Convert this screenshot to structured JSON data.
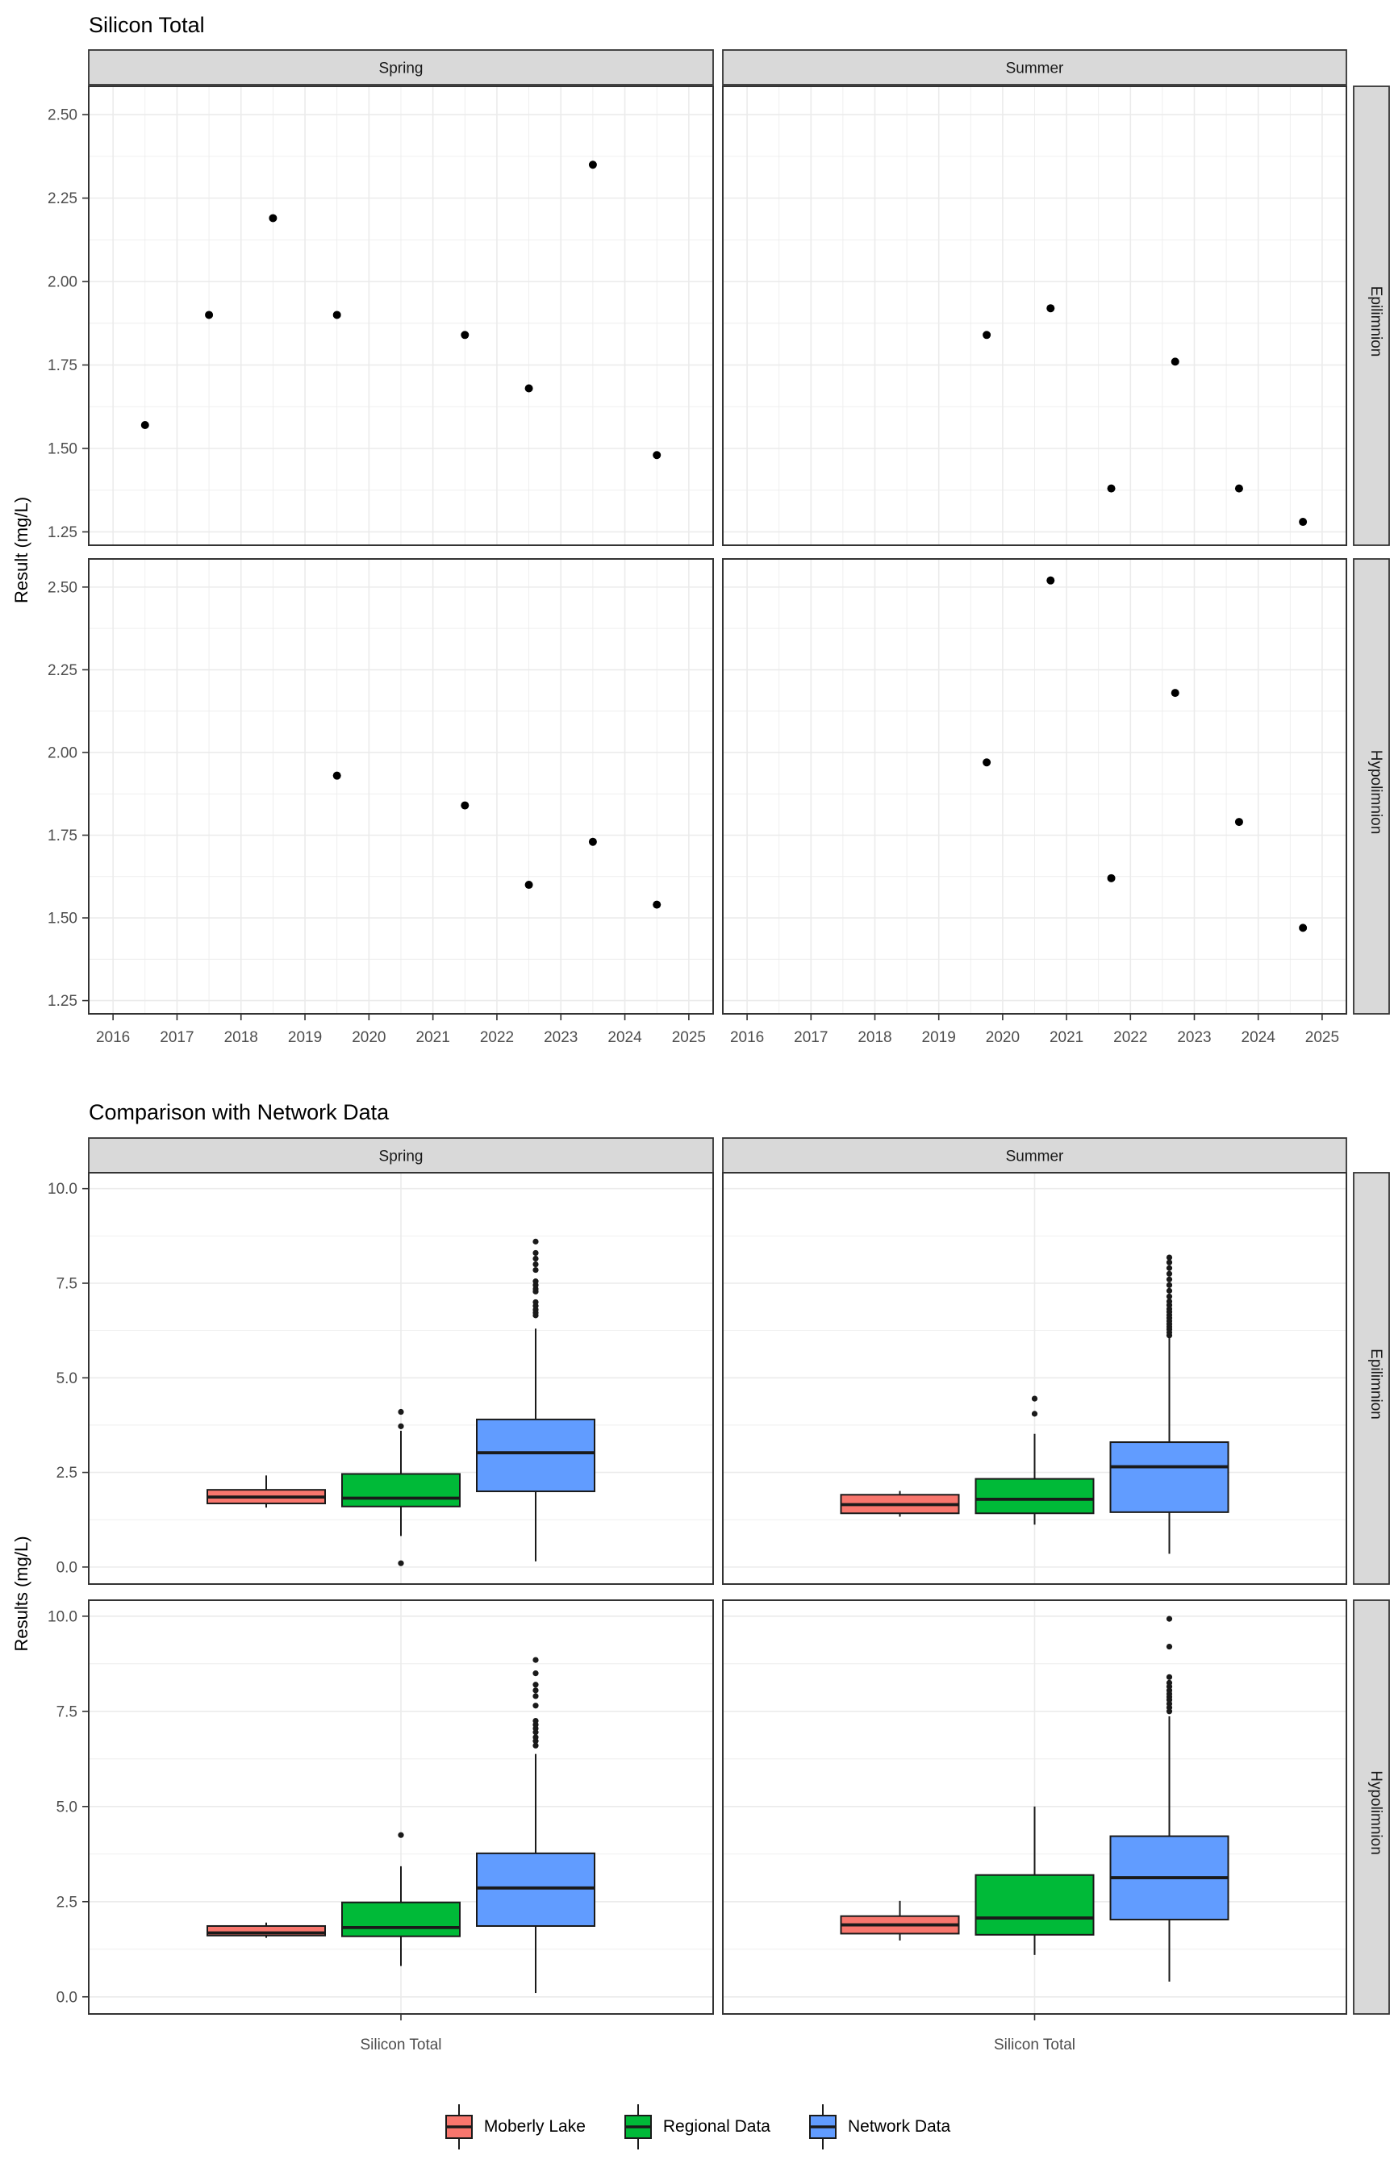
{
  "colors": {
    "moberly": "#F8766D",
    "regional": "#00BA38",
    "network": "#619CFF",
    "strip_fill": "#D9D9D9",
    "strip_border": "#333333",
    "panel_border": "#333333",
    "panel_bg": "#FFFFFF",
    "grid": "#EBEBEB",
    "tick_mark": "#333333",
    "tick_text": "#4D4D4D",
    "point": "#000000",
    "box_stroke": "#1A1A1A"
  },
  "chart_data": [
    {
      "type": "scatter",
      "title": "Silicon Total",
      "ylabel": "Result (mg/L)",
      "col_facets": [
        "Spring",
        "Summer"
      ],
      "row_facets": [
        "Epilimnion",
        "Hypolimnion"
      ],
      "xlim": [
        2015.62,
        2025.38
      ],
      "ylim": [
        1.21,
        2.585
      ],
      "x_tick_values": [
        2016,
        2017,
        2018,
        2019,
        2020,
        2021,
        2022,
        2023,
        2024,
        2025
      ],
      "x_tick_labels": [
        "2016",
        "2017",
        "2018",
        "2019",
        "2020",
        "2021",
        "2022",
        "2023",
        "2024",
        "2025"
      ],
      "x_minor_values": [
        2016.5,
        2017.5,
        2018.5,
        2019.5,
        2020.5,
        2021.5,
        2022.5,
        2023.5,
        2024.5
      ],
      "y_tick_values": [
        1.25,
        1.5,
        1.75,
        2.0,
        2.25,
        2.5
      ],
      "y_tick_labels": [
        "1.25",
        "1.50",
        "1.75",
        "2.00",
        "2.25",
        "2.50"
      ],
      "y_minor_values": [
        1.375,
        1.625,
        1.875,
        2.125,
        2.375
      ],
      "grid": true,
      "points": {
        "Spring|Epilimnion": [
          [
            2016.5,
            1.57
          ],
          [
            2017.5,
            1.9
          ],
          [
            2018.5,
            2.19
          ],
          [
            2019.5,
            1.9
          ],
          [
            2021.5,
            1.84
          ],
          [
            2022.5,
            1.68
          ],
          [
            2023.5,
            2.35
          ],
          [
            2024.5,
            1.48
          ]
        ],
        "Summer|Epilimnion": [
          [
            2019.75,
            1.84
          ],
          [
            2020.75,
            1.92
          ],
          [
            2021.7,
            1.38
          ],
          [
            2022.7,
            1.76
          ],
          [
            2023.7,
            1.38
          ],
          [
            2024.7,
            1.28
          ]
        ],
        "Spring|Hypolimnion": [
          [
            2019.5,
            1.93
          ],
          [
            2021.5,
            1.84
          ],
          [
            2022.5,
            1.6
          ],
          [
            2023.5,
            1.73
          ],
          [
            2024.5,
            1.54
          ]
        ],
        "Summer|Hypolimnion": [
          [
            2019.75,
            1.97
          ],
          [
            2020.75,
            2.52
          ],
          [
            2021.7,
            1.62
          ],
          [
            2022.7,
            2.18
          ],
          [
            2023.7,
            1.79
          ],
          [
            2024.7,
            1.47
          ]
        ]
      }
    },
    {
      "type": "box",
      "title": "Comparison with Network Data",
      "ylabel": "Results (mg/L)",
      "x_category": "Silicon Total",
      "col_facets": [
        "Spring",
        "Summer"
      ],
      "row_facets": [
        "Epilimnion",
        "Hypolimnion"
      ],
      "ylim": [
        -0.45,
        10.42
      ],
      "y_tick_values": [
        0,
        2.5,
        5,
        7.5,
        10
      ],
      "y_tick_labels": [
        "0.0",
        "2.5",
        "5.0",
        "7.5",
        "10.0"
      ],
      "y_minor_values": [
        1.25,
        3.75,
        6.25,
        8.75
      ],
      "grid": true,
      "legend": {
        "items": [
          {
            "label": "Moberly Lake",
            "color": "#F8766D"
          },
          {
            "label": "Regional Data",
            "color": "#00BA38"
          },
          {
            "label": "Network Data",
            "color": "#619CFF"
          }
        ]
      },
      "boxes": {
        "Spring|Epilimnion": [
          {
            "group": "Moberly Lake",
            "color": "#F8766D",
            "whisker_low": 1.57,
            "q1": 1.68,
            "median": 1.85,
            "q3": 2.04,
            "whisker_high": 2.42,
            "outliers": []
          },
          {
            "group": "Regional Data",
            "color": "#00BA38",
            "whisker_low": 0.82,
            "q1": 1.6,
            "median": 1.82,
            "q3": 2.46,
            "whisker_high": 3.6,
            "outliers": [
              0.1,
              3.72,
              4.1
            ]
          },
          {
            "group": "Network Data",
            "color": "#619CFF",
            "whisker_low": 0.15,
            "q1": 2.0,
            "median": 3.02,
            "q3": 3.9,
            "whisker_high": 6.3,
            "outliers": [
              6.65,
              6.72,
              6.8,
              6.9,
              7.0,
              7.28,
              7.35,
              7.45,
              7.55,
              7.85,
              8.0,
              8.15,
              8.3,
              8.6
            ]
          }
        ],
        "Summer|Epilimnion": [
          {
            "group": "Moberly Lake",
            "color": "#F8766D",
            "whisker_low": 1.33,
            "q1": 1.42,
            "median": 1.65,
            "q3": 1.91,
            "whisker_high": 2.01,
            "outliers": []
          },
          {
            "group": "Regional Data",
            "color": "#00BA38",
            "whisker_low": 1.12,
            "q1": 1.42,
            "median": 1.79,
            "q3": 2.33,
            "whisker_high": 3.52,
            "outliers": [
              4.05,
              4.45
            ]
          },
          {
            "group": "Network Data",
            "color": "#619CFF",
            "whisker_low": 0.35,
            "q1": 1.45,
            "median": 2.65,
            "q3": 3.3,
            "whisker_high": 6.05,
            "outliers": [
              6.12,
              6.2,
              6.28,
              6.35,
              6.42,
              6.5,
              6.58,
              6.66,
              6.74,
              6.82,
              6.92,
              7.02,
              7.15,
              7.3,
              7.45,
              7.6,
              7.75,
              7.9,
              8.05,
              8.18
            ]
          }
        ],
        "Spring|Hypolimnion": [
          {
            "group": "Moberly Lake",
            "color": "#F8766D",
            "whisker_low": 1.55,
            "q1": 1.61,
            "median": 1.68,
            "q3": 1.86,
            "whisker_high": 1.95,
            "outliers": []
          },
          {
            "group": "Regional Data",
            "color": "#00BA38",
            "whisker_low": 0.81,
            "q1": 1.59,
            "median": 1.82,
            "q3": 2.48,
            "whisker_high": 3.43,
            "outliers": [
              4.25
            ]
          },
          {
            "group": "Network Data",
            "color": "#619CFF",
            "whisker_low": 0.1,
            "q1": 1.86,
            "median": 2.86,
            "q3": 3.77,
            "whisker_high": 6.38,
            "outliers": [
              6.6,
              6.72,
              6.82,
              6.95,
              7.05,
              7.15,
              7.25,
              7.65,
              7.9,
              8.05,
              8.2,
              8.5,
              8.85
            ]
          }
        ],
        "Summer|Hypolimnion": [
          {
            "group": "Moberly Lake",
            "color": "#F8766D",
            "whisker_low": 1.48,
            "q1": 1.66,
            "median": 1.89,
            "q3": 2.12,
            "whisker_high": 2.52,
            "outliers": []
          },
          {
            "group": "Regional Data",
            "color": "#00BA38",
            "whisker_low": 1.1,
            "q1": 1.63,
            "median": 2.07,
            "q3": 3.2,
            "whisker_high": 5.0,
            "outliers": []
          },
          {
            "group": "Network Data",
            "color": "#619CFF",
            "whisker_low": 0.4,
            "q1": 2.03,
            "median": 3.13,
            "q3": 4.22,
            "whisker_high": 7.37,
            "outliers": [
              7.5,
              7.6,
              7.7,
              7.8,
              7.88,
              7.96,
              8.05,
              8.15,
              8.25,
              8.4,
              9.2,
              9.93
            ]
          }
        ]
      }
    }
  ]
}
